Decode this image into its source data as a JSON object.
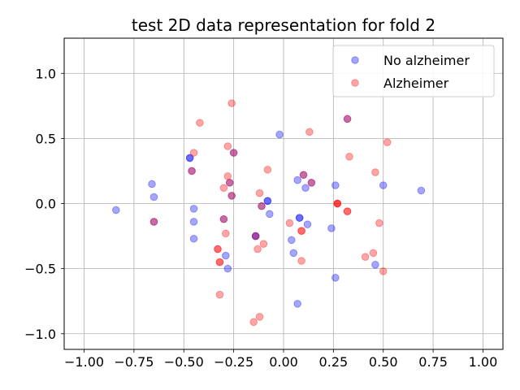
{
  "chart_data": {
    "type": "scatter",
    "title": "test 2D data representation for fold 2",
    "xlabel": "",
    "ylabel": "",
    "xlim": [
      -1.1,
      1.1
    ],
    "ylim": [
      -1.12,
      1.27
    ],
    "xticks": [
      -1.0,
      -0.75,
      -0.5,
      -0.25,
      0.0,
      0.25,
      0.5,
      0.75,
      1.0
    ],
    "xtick_labels": [
      "−1.00",
      "−0.75",
      "−0.50",
      "−0.25",
      "0.00",
      "0.25",
      "0.50",
      "0.75",
      "1.00"
    ],
    "yticks": [
      -1.0,
      -0.5,
      0.0,
      0.5,
      1.0
    ],
    "ytick_labels": [
      "−1.0",
      "−0.5",
      "0.0",
      "0.5",
      "1.0"
    ],
    "grid": true,
    "legend_position": "top-right",
    "series": [
      {
        "name": "No alzheimer",
        "color": "#0000ff",
        "alpha": 0.35,
        "points": [
          [
            -0.84,
            -0.05
          ],
          [
            -0.66,
            0.15
          ],
          [
            -0.65,
            0.05
          ],
          [
            -0.65,
            -0.14
          ],
          [
            -0.47,
            0.35
          ],
          [
            -0.47,
            0.35
          ],
          [
            -0.46,
            0.25
          ],
          [
            -0.45,
            -0.04
          ],
          [
            -0.45,
            -0.14
          ],
          [
            -0.45,
            -0.27
          ],
          [
            -0.3,
            -0.12
          ],
          [
            -0.29,
            -0.4
          ],
          [
            -0.28,
            -0.5
          ],
          [
            -0.27,
            0.16
          ],
          [
            -0.26,
            0.06
          ],
          [
            -0.25,
            0.39
          ],
          [
            -0.14,
            -0.25
          ],
          [
            -0.14,
            -0.25
          ],
          [
            -0.11,
            -0.02
          ],
          [
            -0.08,
            0.02
          ],
          [
            -0.08,
            0.02
          ],
          [
            -0.07,
            -0.08
          ],
          [
            -0.02,
            0.53
          ],
          [
            0.04,
            -0.28
          ],
          [
            0.05,
            -0.38
          ],
          [
            0.07,
            0.18
          ],
          [
            0.07,
            -0.77
          ],
          [
            0.08,
            -0.11
          ],
          [
            0.08,
            -0.11
          ],
          [
            0.1,
            0.22
          ],
          [
            0.11,
            0.12
          ],
          [
            0.12,
            -0.16
          ],
          [
            0.14,
            0.16
          ],
          [
            0.24,
            -0.19
          ],
          [
            0.26,
            -0.57
          ],
          [
            0.26,
            0.14
          ],
          [
            0.32,
            0.65
          ],
          [
            0.46,
            -0.47
          ],
          [
            0.5,
            0.14
          ],
          [
            0.69,
            0.1
          ]
        ]
      },
      {
        "name": "Alzheimer",
        "color": "#ff0000",
        "alpha": 0.35,
        "points": [
          [
            -0.65,
            -0.14
          ],
          [
            -0.46,
            0.25
          ],
          [
            -0.45,
            0.39
          ],
          [
            -0.42,
            0.62
          ],
          [
            -0.33,
            -0.35
          ],
          [
            -0.33,
            -0.35
          ],
          [
            -0.32,
            -0.45
          ],
          [
            -0.32,
            -0.45
          ],
          [
            -0.32,
            -0.7
          ],
          [
            -0.3,
            0.12
          ],
          [
            -0.3,
            -0.12
          ],
          [
            -0.29,
            -0.23
          ],
          [
            -0.28,
            0.44
          ],
          [
            -0.28,
            0.21
          ],
          [
            -0.27,
            0.16
          ],
          [
            -0.26,
            0.06
          ],
          [
            -0.26,
            0.77
          ],
          [
            -0.25,
            0.39
          ],
          [
            -0.15,
            -0.91
          ],
          [
            -0.14,
            -0.25
          ],
          [
            -0.13,
            -0.35
          ],
          [
            -0.12,
            0.08
          ],
          [
            -0.12,
            -0.87
          ],
          [
            -0.11,
            -0.02
          ],
          [
            -0.1,
            -0.31
          ],
          [
            -0.08,
            0.26
          ],
          [
            0.03,
            -0.15
          ],
          [
            0.09,
            -0.44
          ],
          [
            0.09,
            -0.21
          ],
          [
            0.09,
            -0.21
          ],
          [
            0.1,
            0.22
          ],
          [
            0.13,
            0.55
          ],
          [
            0.14,
            0.16
          ],
          [
            0.27,
            0.0
          ],
          [
            0.27,
            0.0
          ],
          [
            0.27,
            0.0
          ],
          [
            0.32,
            -0.06
          ],
          [
            0.32,
            -0.06
          ],
          [
            0.32,
            0.65
          ],
          [
            0.33,
            0.36
          ],
          [
            0.41,
            -0.41
          ],
          [
            0.45,
            -0.38
          ],
          [
            0.46,
            0.24
          ],
          [
            0.48,
            -0.15
          ],
          [
            0.5,
            -0.52
          ],
          [
            0.52,
            0.47
          ]
        ]
      }
    ]
  }
}
